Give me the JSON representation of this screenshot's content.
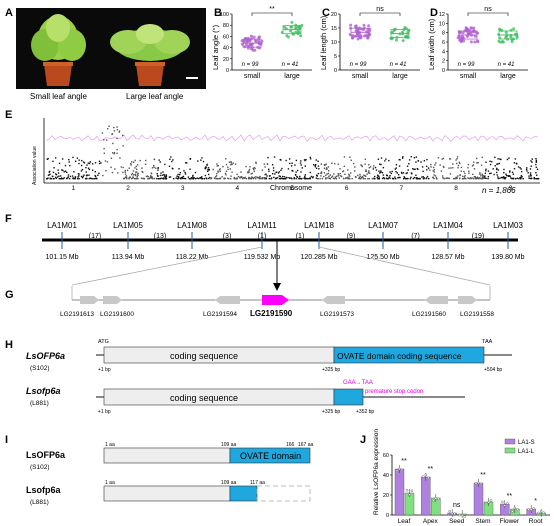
{
  "panels": {
    "A": {
      "letter": "A",
      "labels": [
        "Small leaf angle",
        "Large leaf angle"
      ]
    },
    "B": {
      "letter": "B",
      "ylabel": "Leaf angle (°)",
      "sig": "**"
    },
    "C": {
      "letter": "C",
      "ylabel": "Leaf length (cm)",
      "sig": "ns"
    },
    "D": {
      "letter": "D",
      "ylabel": "Leaf width (cm)",
      "sig": "ns"
    },
    "E": {
      "letter": "E",
      "ylabel": "Association value",
      "xlabel": "Chromosome",
      "chromosomes": [
        "1",
        "2",
        "3",
        "4",
        "5",
        "6",
        "7",
        "8",
        "9"
      ],
      "n_label": "n = 1,866"
    },
    "F": {
      "letter": "F",
      "markers": [
        "LA1M01",
        "LA1M05",
        "LA1M08",
        "LA1M11",
        "LA1M18",
        "LA1M07",
        "LA1M04",
        "LA1M03"
      ],
      "recombinants": [
        "(17)",
        "(13)",
        "(3)",
        "(1)",
        "(1)",
        "(9)",
        "(7)",
        "(19)"
      ],
      "positions": [
        "101.15 Mb",
        "113.94 Mb",
        "118.22 Mb",
        "119.532 Mb",
        "120.285 Mb",
        "125.50 Mb",
        "128.57 Mb",
        "139.80 Mb"
      ]
    },
    "G": {
      "letter": "G",
      "genes": [
        "LG2191613",
        "LG2191600",
        "LG2191594",
        "LG2191590",
        "LG2191573",
        "LG2191560",
        "LG2191558"
      ],
      "highlight": "LG2191590"
    },
    "H": {
      "letter": "H",
      "wt_name": "LsOFP6a",
      "wt_line": "(S102)",
      "mut_name": "Lsofp6a",
      "mut_line": "(L881)",
      "atg": "ATG",
      "taa": "TAA",
      "coding_label": "coding sequence",
      "domain_label": "OVATE domain coding sequence",
      "pos_1": "+1 bp",
      "pos_325": "+325 bp",
      "pos_504": "+504 bp",
      "pos_352": "+352 bp",
      "mutation": "GAA→TAA",
      "premature": "premature stop codon"
    },
    "I": {
      "letter": "I",
      "wt_name": "LsOFP6a",
      "wt_line": "(S102)",
      "mut_name": "Lsofp6a",
      "mut_line": "(L881)",
      "domain_label": "OVATE domain",
      "aa_1": "1 aa",
      "aa_109": "109 aa",
      "aa_166": "166",
      "aa_167": "167 aa",
      "aa_117": "117 aa"
    },
    "J": {
      "letter": "J",
      "ylabel": "Relative LsOFP6a expression",
      "legend": [
        "LA1-S",
        "LA1-L"
      ],
      "tissues": [
        "Leaf",
        "Apex",
        "Seed",
        "Stem",
        "Flower",
        "Root"
      ],
      "sig": [
        "**",
        "**",
        "ns",
        "**",
        "**",
        "*"
      ]
    }
  },
  "chart_data": [
    {
      "type": "scatter",
      "panel": "B",
      "categories": [
        "small",
        "large"
      ],
      "ylabel": "Leaf angle (°)",
      "ylim": [
        0,
        100
      ],
      "yticks": [
        0,
        20,
        40,
        60,
        80,
        100
      ],
      "n": [
        "n = 99",
        "n = 41"
      ],
      "median": [
        48,
        72
      ],
      "colors": [
        "#b060d0",
        "#40c060"
      ]
    },
    {
      "type": "scatter",
      "panel": "C",
      "categories": [
        "small",
        "large"
      ],
      "ylabel": "Leaf length (cm)",
      "ylim": [
        0,
        20
      ],
      "yticks": [
        0,
        5,
        10,
        15,
        20
      ],
      "n": [
        "n = 99",
        "n = 41"
      ],
      "median": [
        13.5,
        13
      ],
      "colors": [
        "#b060d0",
        "#40c060"
      ]
    },
    {
      "type": "scatter",
      "panel": "D",
      "categories": [
        "small",
        "large"
      ],
      "ylabel": "Leaf width (cm)",
      "ylim": [
        0,
        12
      ],
      "yticks": [
        0,
        2,
        4,
        6,
        8,
        10,
        12
      ],
      "n": [
        "n = 99",
        "n = 41"
      ],
      "median": [
        7.5,
        7.5
      ],
      "colors": [
        "#b060d0",
        "#40c060"
      ]
    },
    {
      "type": "bar",
      "panel": "J",
      "categories": [
        "Leaf",
        "Apex",
        "Seed",
        "Stem",
        "Flower",
        "Root"
      ],
      "ylim": [
        0,
        60
      ],
      "yticks": [
        0,
        20,
        40,
        60
      ],
      "series": [
        {
          "name": "LA1-S",
          "values": [
            46,
            38,
            2,
            32,
            11,
            6
          ],
          "color": "#b080e0"
        },
        {
          "name": "LA1-L",
          "values": [
            22,
            17,
            1,
            13,
            6,
            2
          ],
          "color": "#80e080"
        }
      ]
    }
  ]
}
